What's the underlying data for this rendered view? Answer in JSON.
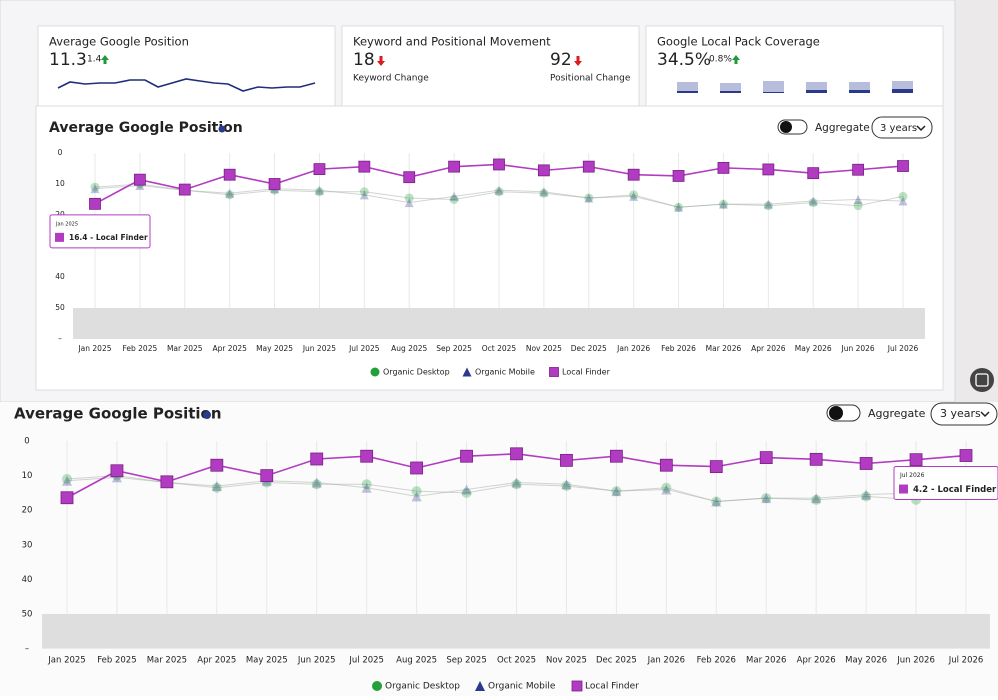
{
  "cards": [
    {
      "title": "Average Google Position",
      "value": "11.3",
      "delta": "1.4"
    },
    {
      "title": "Keyword and Positional Movement",
      "metrics": [
        {
          "value": "18",
          "label": "Keyword Change"
        },
        {
          "value": "92",
          "label": "Positional Change"
        }
      ]
    },
    {
      "title": "Google Local Pack Coverage",
      "value": "34.5%",
      "delta": "0.8%"
    }
  ],
  "controls": {
    "toggle": "Aggregate",
    "range": "3 years"
  },
  "chart_data": {
    "type": "line",
    "title": "Average Google Position",
    "categories": [
      "Jan 2025",
      "Feb 2025",
      "Mar 2025",
      "Apr 2025",
      "May 2025",
      "Jun 2025",
      "Jul 2025",
      "Aug 2025",
      "Sep 2025",
      "Oct 2025",
      "Nov 2025",
      "Dec 2025",
      "Jan 2026",
      "Feb 2026",
      "Mar 2026",
      "Apr 2026",
      "May 2026",
      "Jun 2026",
      "Jul 2026"
    ],
    "series": [
      {
        "name": "Organic Desktop",
        "color": "#22a03a",
        "marker": "circle",
        "values": [
          11,
          10,
          12,
          13.5,
          12,
          12.5,
          12.5,
          14.5,
          15,
          12.5,
          13,
          14.5,
          13.5,
          17.5,
          16.5,
          17,
          16,
          17,
          14
        ]
      },
      {
        "name": "Organic Mobile",
        "color": "#2b3a8c",
        "marker": "triangle",
        "values": [
          11.5,
          10.5,
          12,
          13,
          11.5,
          12,
          13.5,
          16,
          14,
          12,
          12.5,
          14.5,
          14,
          17.5,
          16.5,
          16.5,
          15.5,
          15,
          15.5
        ]
      },
      {
        "name": "Local Finder",
        "color": "#b23cc1",
        "marker": "square",
        "values": [
          16.4,
          8.6,
          11.8,
          7,
          10,
          5.2,
          4.4,
          7.8,
          4.4,
          3.7,
          5.6,
          4.4,
          7,
          7.4,
          4.8,
          5.3,
          6.5,
          5.4,
          4.2
        ]
      }
    ],
    "ylim": [
      0,
      60
    ],
    "y_reversed": true,
    "yticks": [
      0,
      10,
      20,
      30,
      40,
      50,
      {
        "value": 60,
        "label": "–"
      }
    ],
    "grid": "x",
    "tooltips": [
      {
        "date": "Jan 2025",
        "label": "16.4 - Local Finder"
      },
      {
        "date": "Jul 2026",
        "label": "4.2 - Local Finder"
      }
    ]
  }
}
